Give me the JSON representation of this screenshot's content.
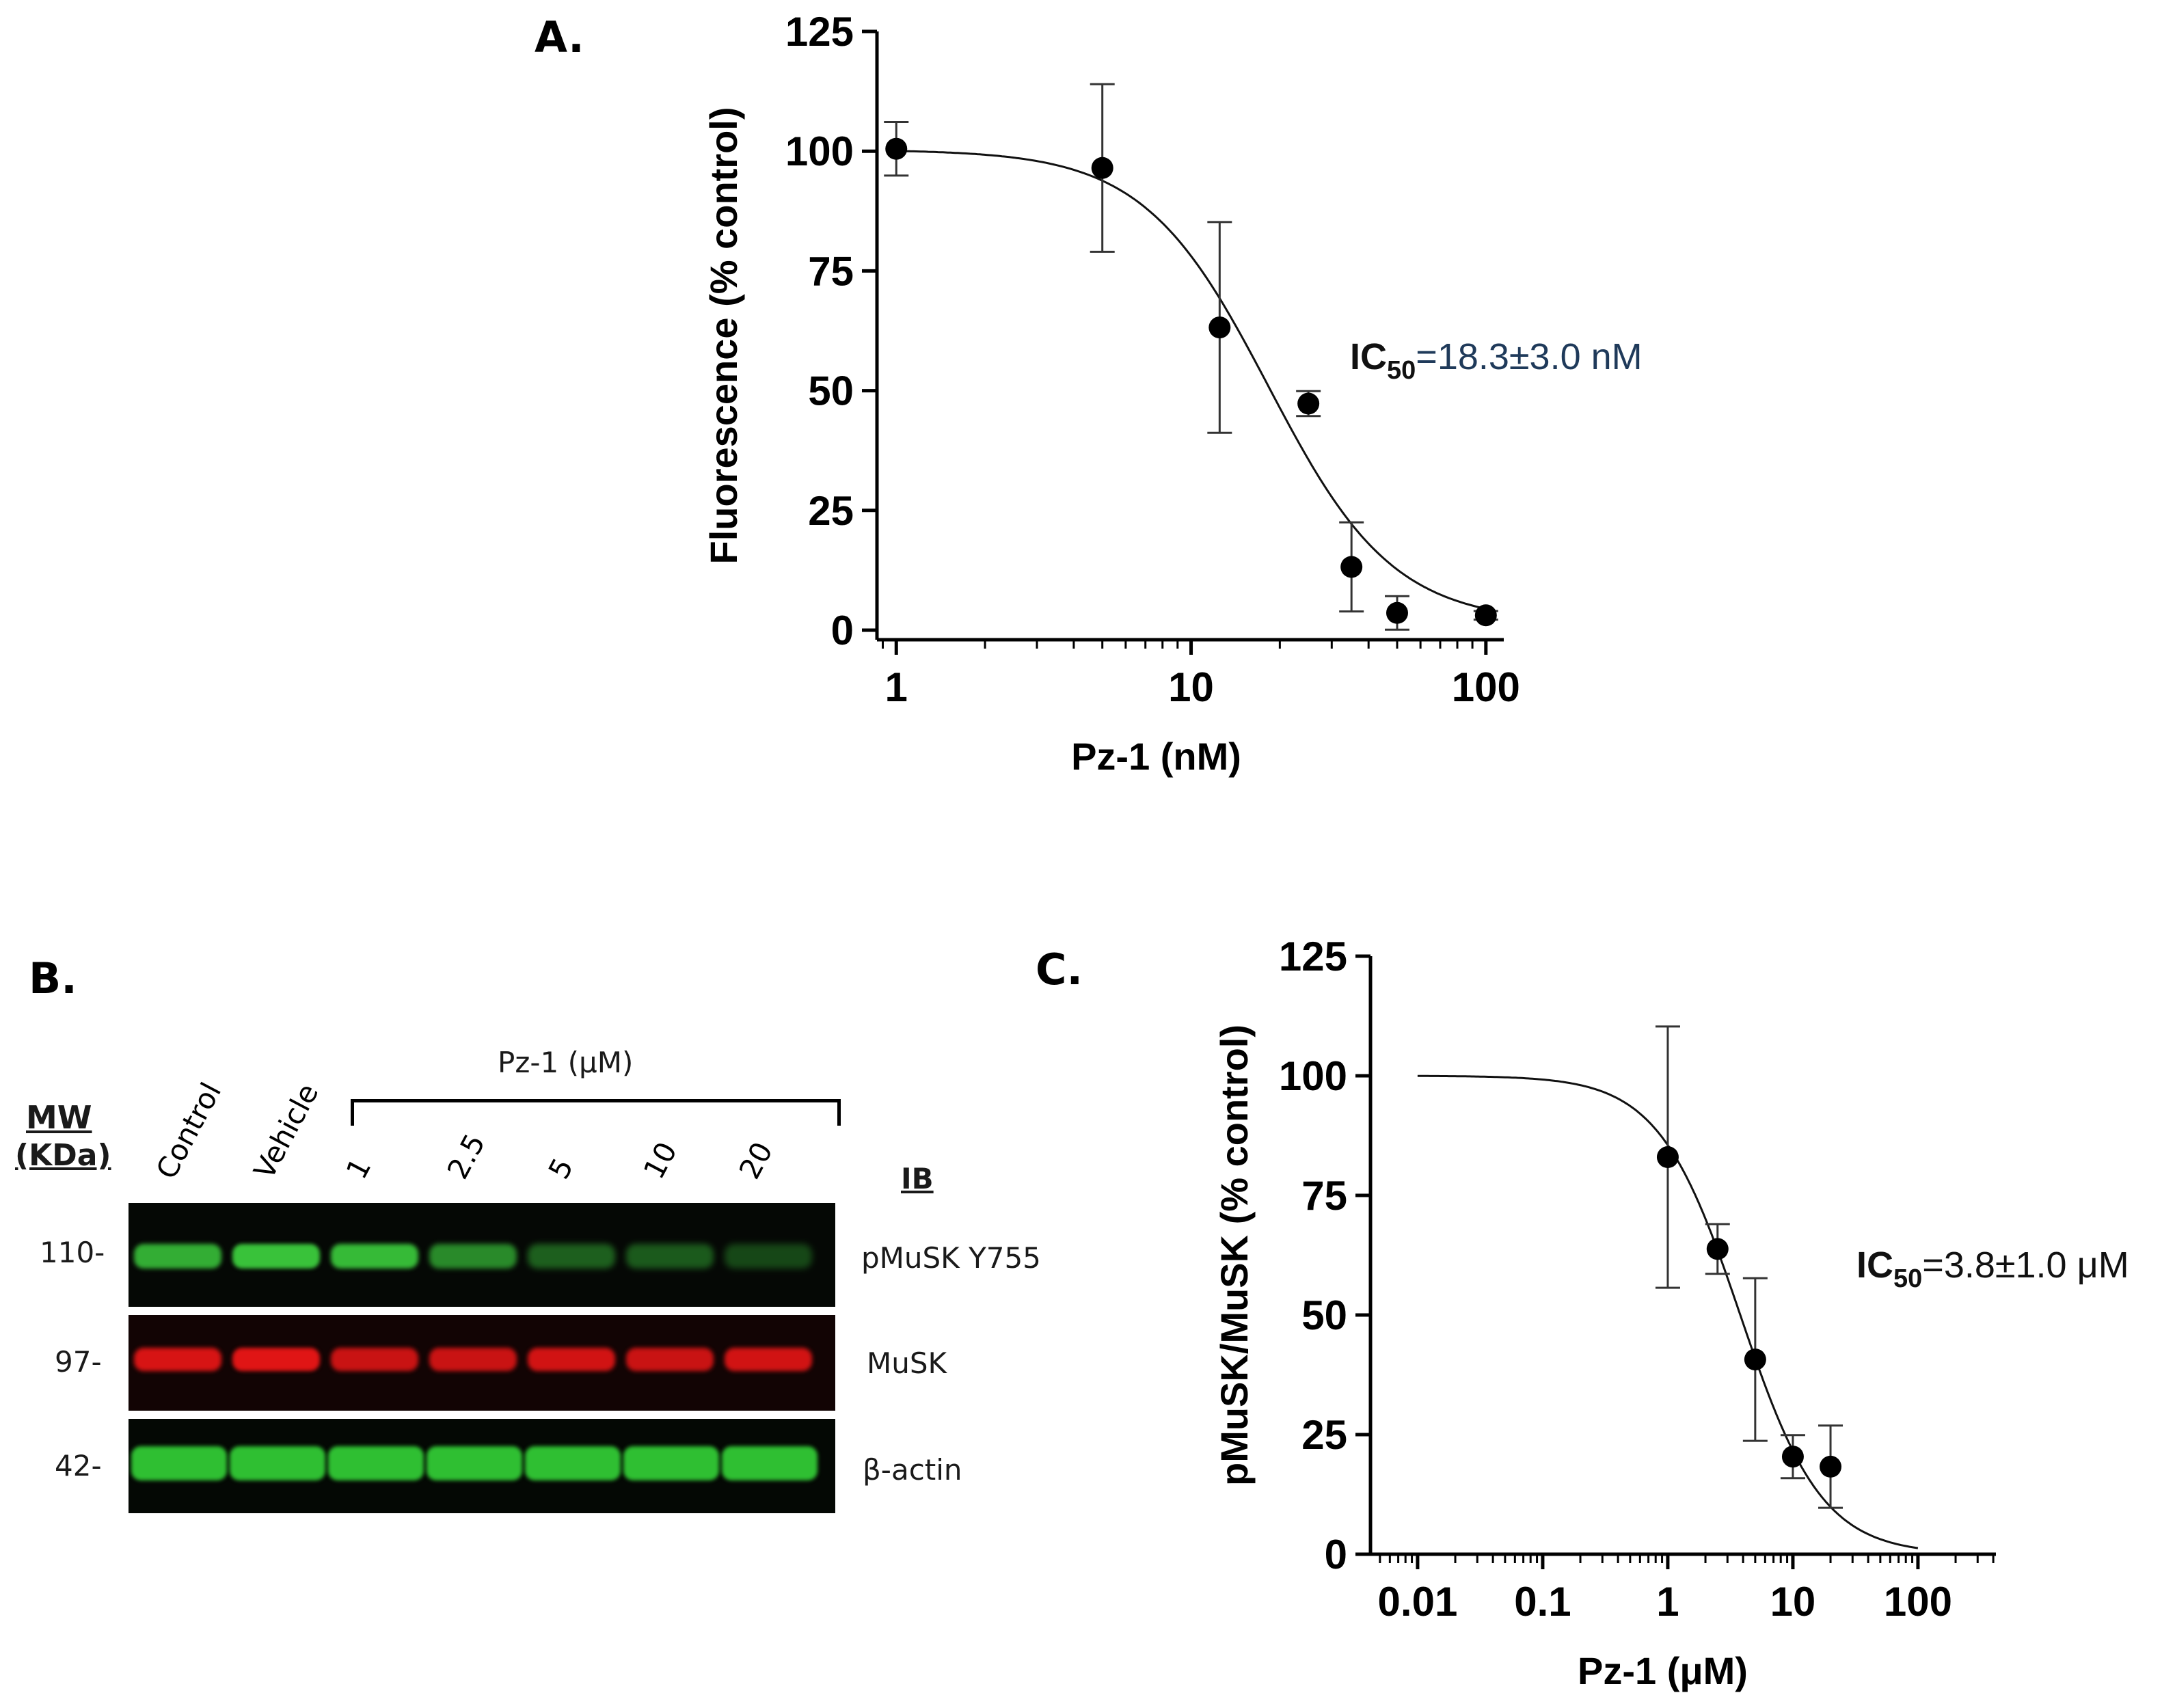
{
  "panels": {
    "A": {
      "label": "A."
    },
    "B": {
      "label": "B."
    },
    "C": {
      "label": "C."
    }
  },
  "chart_data": [
    {
      "id": "A",
      "type": "scatter",
      "xscale": "log",
      "xlabel": "Pz-1 (nM)",
      "ylabel": "Fluorescence (% control)",
      "xlim": [
        0.86,
        115
      ],
      "ylim": [
        -2,
        125
      ],
      "xticks": [
        1,
        10,
        100
      ],
      "yticks": [
        0,
        25,
        50,
        75,
        100,
        125
      ],
      "x": [
        1,
        5,
        12.5,
        25,
        35,
        50,
        100
      ],
      "y": [
        100.5,
        96.5,
        63.2,
        47.3,
        13.2,
        3.6,
        3.1
      ],
      "error": [
        5.6,
        17.5,
        22,
        2.6,
        9.3,
        3.5,
        0.9
      ],
      "fit": {
        "type": "four-parameter logistic",
        "top": 100.3,
        "bottom": 1.5,
        "ic50": 18.3,
        "hill": 2.05
      },
      "annotation": {
        "prefix": "IC",
        "sub": "50",
        "value": "=18.3±3.0 nM"
      }
    },
    {
      "id": "C",
      "type": "scatter",
      "xscale": "log",
      "xlabel": "Pz-1 (μM)",
      "ylabel": "pMuSK/MuSK (% control)",
      "xlim": [
        0.0042,
        420
      ],
      "ylim": [
        0,
        125
      ],
      "xticks": [
        0.01,
        0.1,
        1,
        10,
        100
      ],
      "xticklabels": [
        "0.01",
        "0.1",
        "1",
        "10",
        "100"
      ],
      "yticks": [
        0,
        25,
        50,
        75,
        100,
        125
      ],
      "x": [
        1,
        2.5,
        5,
        10,
        20
      ],
      "y": [
        83,
        63.8,
        40.7,
        20.4,
        18.3
      ],
      "error": [
        27.3,
        5.2,
        17,
        4.5,
        8.6
      ],
      "fit": {
        "type": "four-parameter logistic",
        "top": 100,
        "bottom": 0,
        "ic50": 3.8,
        "hill": 1.33
      },
      "annotation": {
        "prefix": "IC",
        "sub": "50",
        "value": "=3.8±1.0 μM"
      }
    }
  ],
  "blot": {
    "mw_label": "MW",
    "kda_label": "(KDa)",
    "treatment_label": "Pz-1 (μM)",
    "ib_label": "IB",
    "lanes": [
      "Control",
      "Vehicle",
      "1",
      "2.5",
      "5",
      "10",
      "20"
    ],
    "rows": [
      {
        "mw": "110-",
        "name": "pMuSK Y755",
        "color": "#39c23a",
        "intensity": [
          0.85,
          1.0,
          0.95,
          0.6,
          0.3,
          0.25,
          0.12
        ]
      },
      {
        "mw": "97-",
        "name": "MuSK",
        "color": "#e01515",
        "intensity": [
          0.95,
          1.0,
          0.85,
          0.85,
          0.9,
          0.85,
          0.9
        ]
      },
      {
        "mw": "42-",
        "name": "β-actin",
        "color": "#2fbf32",
        "intensity": [
          1,
          1,
          1,
          1,
          1,
          1,
          1
        ]
      }
    ]
  }
}
